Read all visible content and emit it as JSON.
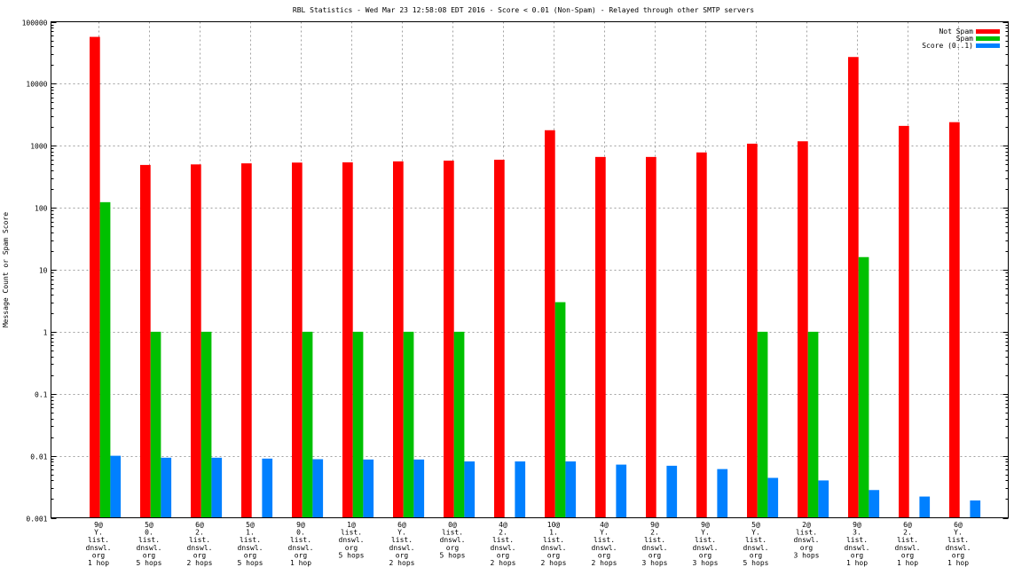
{
  "chart_data": {
    "type": "bar",
    "title": "RBL Statistics - Wed Mar 23 12:58:08 EDT 2016 - Score < 0.01 (Non-Spam) - Relayed through other SMTP servers",
    "xlabel": "",
    "ylabel": "Message Count or Spam Score",
    "yscale": "log",
    "ylim": [
      0.001,
      100000
    ],
    "yticks": [
      "0.001",
      "0.01",
      "0.1",
      "1",
      "10",
      "100",
      "1000",
      "10000",
      "100000"
    ],
    "grid": true,
    "legend_position": "top-right",
    "categories": [
      [
        "9@",
        "Y.",
        "list.",
        "dnswl.",
        "org",
        "1 hop"
      ],
      [
        "5@",
        "0.",
        "list.",
        "dnswl.",
        "org",
        "5 hops"
      ],
      [
        "6@",
        "2.",
        "list.",
        "dnswl.",
        "org",
        "2 hops"
      ],
      [
        "5@",
        "1.",
        "list.",
        "dnswl.",
        "org",
        "5 hops"
      ],
      [
        "9@",
        "0.",
        "list.",
        "dnswl.",
        "org",
        "1 hop"
      ],
      [
        "1@",
        "list.",
        "dnswl.",
        "org",
        "5 hops"
      ],
      [
        "6@",
        "Y.",
        "list.",
        "dnswl.",
        "org",
        "2 hops"
      ],
      [
        "0@",
        "list.",
        "dnswl.",
        "org",
        "5 hops"
      ],
      [
        "4@",
        "2.",
        "list.",
        "dnswl.",
        "org",
        "2 hops"
      ],
      [
        "10@",
        "1.",
        "list.",
        "dnswl.",
        "org",
        "2 hops"
      ],
      [
        "4@",
        "Y.",
        "list.",
        "dnswl.",
        "org",
        "2 hops"
      ],
      [
        "9@",
        "2.",
        "list.",
        "dnswl.",
        "org",
        "3 hops"
      ],
      [
        "9@",
        "Y.",
        "list.",
        "dnswl.",
        "org",
        "3 hops"
      ],
      [
        "5@",
        "Y.",
        "list.",
        "dnswl.",
        "org",
        "5 hops"
      ],
      [
        "2@",
        "list.",
        "dnswl.",
        "org",
        "3 hops"
      ],
      [
        "9@",
        "3.",
        "list.",
        "dnswl.",
        "org",
        "1 hop"
      ],
      [
        "6@",
        "2.",
        "list.",
        "dnswl.",
        "org",
        "1 hop"
      ],
      [
        "6@",
        "Y.",
        "list.",
        "dnswl.",
        "org",
        "1 hop"
      ]
    ],
    "series": [
      {
        "name": "Not Spam",
        "color": "#ff0000",
        "values": [
          57000,
          490,
          500,
          520,
          535,
          540,
          560,
          575,
          595,
          1780,
          660,
          660,
          780,
          1080,
          1180,
          27000,
          2090,
          2400
        ]
      },
      {
        "name": "Spam",
        "color": "#00c000",
        "values": [
          123,
          1,
          1,
          null,
          1,
          1,
          1,
          1,
          null,
          3,
          null,
          null,
          null,
          1,
          1,
          16,
          null,
          null
        ]
      },
      {
        "name": "Score (0..1)",
        "color": "#0080ff",
        "values": [
          0.01,
          0.0093,
          0.0093,
          0.009,
          0.0088,
          0.0087,
          0.0087,
          0.0081,
          0.0081,
          0.0081,
          0.0072,
          0.0069,
          0.0061,
          0.0044,
          0.004,
          0.0028,
          0.0022,
          0.0019
        ]
      }
    ]
  }
}
